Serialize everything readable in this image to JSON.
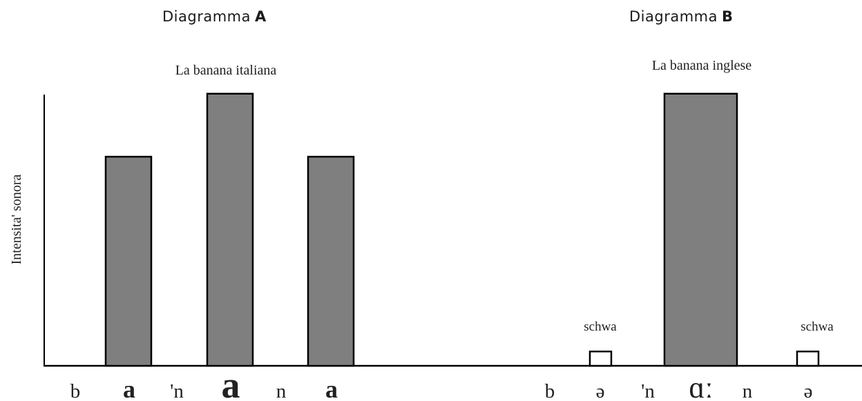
{
  "diagram_a_heading": {
    "word": "Diagramma",
    "letter": "A"
  },
  "diagram_b_heading": {
    "word": "Diagramma",
    "letter": "B"
  },
  "chart_data": {
    "type": "bar",
    "ylabel": "Intensita' sonora",
    "bar_color": "#7f7f7f",
    "unstressed_color": "#ffffff",
    "panels": [
      {
        "title": "La banana italiana",
        "categories": [
          "a",
          "a",
          "a"
        ],
        "values": [
          0.73,
          0.95,
          0.73
        ],
        "syllable_labels": [
          "b",
          "a",
          "'n",
          "a",
          "n",
          "a"
        ]
      },
      {
        "title": "La banana inglese",
        "categories": [
          "schwa",
          "ɑː",
          "schwa"
        ],
        "values": [
          0.05,
          0.95,
          0.05
        ],
        "bar_annotations": [
          "schwa",
          "",
          "schwa"
        ],
        "syllable_labels": [
          "b",
          "ə",
          "'n",
          "ɑː",
          "n",
          "ə"
        ]
      }
    ]
  }
}
